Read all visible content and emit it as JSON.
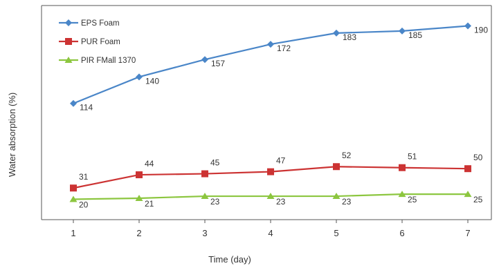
{
  "chart_data": {
    "type": "line",
    "xlabel": "Time (day)",
    "ylabel": "Water absorption (%)",
    "x": [
      1,
      2,
      3,
      4,
      5,
      6,
      7
    ],
    "x_tick_labels": [
      "1",
      "2",
      "3",
      "4",
      "5",
      "6",
      "7"
    ],
    "ylim": [
      0,
      210
    ],
    "y_ticks_shown": false,
    "grid": false,
    "legend": "top-left",
    "series": [
      {
        "name": "EPS Foam",
        "color": "#4a86c8",
        "marker": "diamond",
        "values": [
          114,
          140,
          157,
          172,
          183,
          185,
          190
        ],
        "labels": [
          "114",
          "140",
          "157",
          "172",
          "183",
          "185",
          "190"
        ]
      },
      {
        "name": "PUR Foam",
        "color": "#cc3333",
        "marker": "square",
        "values": [
          31,
          44,
          45,
          47,
          52,
          51,
          50
        ],
        "labels": [
          "31",
          "44",
          "45",
          "47",
          "52",
          "51",
          "50"
        ]
      },
      {
        "name": "PIR FMall 1370",
        "color": "#8cc63f",
        "marker": "triangle",
        "values": [
          20,
          21,
          23,
          23,
          23,
          25,
          25
        ],
        "labels": [
          "20",
          "21",
          "23",
          "23",
          "23",
          "25",
          "25"
        ]
      }
    ]
  }
}
